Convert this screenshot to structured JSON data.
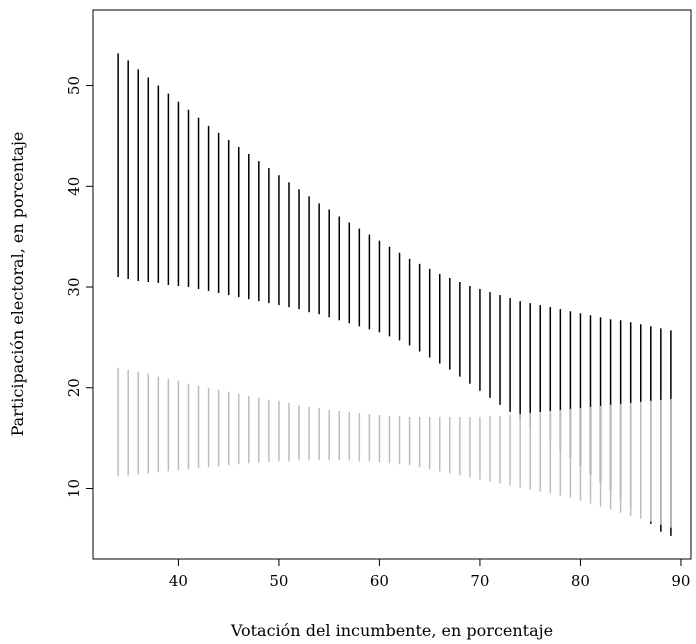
{
  "chart_data": {
    "type": "interval",
    "title": "",
    "xlabel": "Votación del incumbente, en porcentaje",
    "ylabel": "Participación electoral, en porcentaje",
    "xlim": [
      31.5,
      91
    ],
    "ylim": [
      3,
      57.5
    ],
    "xticks": [
      40,
      50,
      60,
      70,
      80,
      90
    ],
    "yticks": [
      10,
      20,
      30,
      40,
      50
    ],
    "grid": false,
    "legend": "none",
    "x_start": 34,
    "x_step": 1,
    "series": [
      {
        "color": "#000000",
        "low": [
          31.0,
          30.8,
          30.6,
          30.5,
          30.4,
          30.2,
          30.1,
          30.0,
          29.8,
          29.6,
          29.4,
          29.2,
          29.0,
          28.8,
          28.6,
          28.4,
          28.2,
          28.0,
          27.8,
          27.5,
          27.3,
          27.0,
          26.7,
          26.4,
          26.1,
          25.8,
          25.5,
          25.1,
          24.7,
          24.2,
          23.6,
          23.0,
          22.4,
          21.8,
          21.1,
          20.4,
          19.7,
          19.0,
          18.3,
          17.6,
          16.9,
          16.2,
          15.4,
          14.6,
          13.8,
          13.0,
          12.2,
          11.4,
          10.6,
          9.8,
          9.0,
          8.2,
          7.3,
          6.5,
          5.7,
          5.3
        ],
        "high": [
          53.2,
          52.5,
          51.6,
          50.8,
          50.0,
          49.2,
          48.4,
          47.6,
          46.8,
          46.0,
          45.3,
          44.6,
          43.9,
          43.2,
          42.5,
          41.8,
          41.1,
          40.4,
          39.7,
          39.0,
          38.3,
          37.7,
          37.0,
          36.4,
          35.8,
          35.2,
          34.6,
          34.0,
          33.4,
          32.8,
          32.3,
          31.8,
          31.3,
          30.9,
          30.5,
          30.1,
          29.8,
          29.5,
          29.2,
          28.9,
          28.6,
          28.4,
          28.2,
          28.0,
          27.8,
          27.6,
          27.4,
          27.2,
          27.0,
          26.8,
          26.7,
          26.5,
          26.3,
          26.1,
          25.9,
          25.7
        ]
      },
      {
        "color": "#bdbdbd",
        "low": [
          11.2,
          11.3,
          11.4,
          11.5,
          11.6,
          11.7,
          11.8,
          11.9,
          12.0,
          12.1,
          12.2,
          12.3,
          12.4,
          12.5,
          12.6,
          12.6,
          12.7,
          12.7,
          12.8,
          12.8,
          12.8,
          12.8,
          12.8,
          12.8,
          12.7,
          12.7,
          12.6,
          12.5,
          12.4,
          12.3,
          12.1,
          11.9,
          11.7,
          11.5,
          11.3,
          11.1,
          10.9,
          10.7,
          10.5,
          10.3,
          10.1,
          9.9,
          9.7,
          9.5,
          9.3,
          9.1,
          8.8,
          8.5,
          8.2,
          7.9,
          7.6,
          7.3,
          7.0,
          6.7,
          6.4,
          6.1
        ],
        "high": [
          22.0,
          21.8,
          21.6,
          21.4,
          21.1,
          20.9,
          20.7,
          20.4,
          20.2,
          20.0,
          19.8,
          19.6,
          19.4,
          19.2,
          19.0,
          18.8,
          18.7,
          18.5,
          18.3,
          18.1,
          18.0,
          17.8,
          17.7,
          17.6,
          17.5,
          17.4,
          17.3,
          17.2,
          17.2,
          17.1,
          17.1,
          17.1,
          17.1,
          17.1,
          17.1,
          17.1,
          17.1,
          17.2,
          17.2,
          17.3,
          17.4,
          17.5,
          17.6,
          17.7,
          17.8,
          17.9,
          18.0,
          18.1,
          18.2,
          18.3,
          18.4,
          18.5,
          18.6,
          18.7,
          18.8,
          18.9
        ]
      }
    ]
  }
}
